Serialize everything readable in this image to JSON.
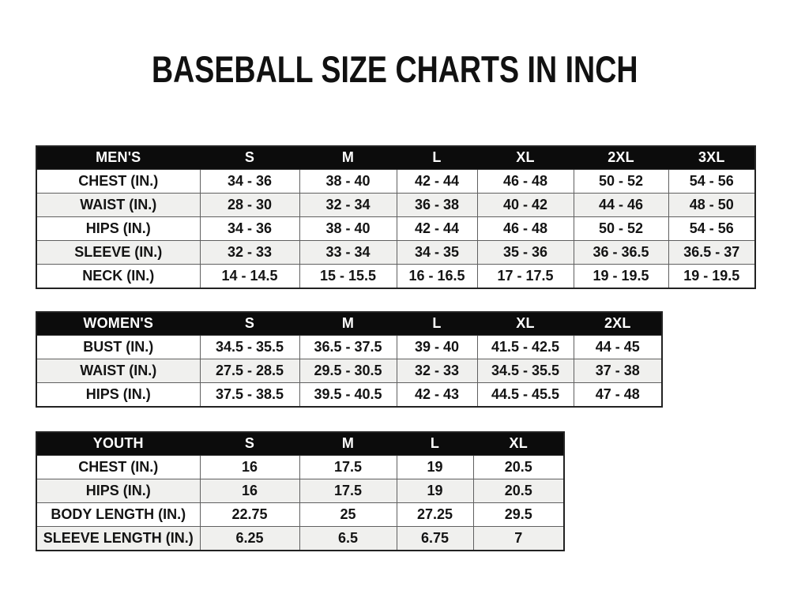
{
  "page": {
    "title": "BASEBALL SIZE CHARTS IN INCH",
    "unit": "inch"
  },
  "colors": {
    "page_bg": "#ffffff",
    "title_color": "#111111",
    "header_bg": "#0c0c0c",
    "header_text": "#ffffff",
    "row_bg": "#ffffff",
    "row_alt_bg": "#f0f0ee"
  },
  "chart_data": [
    {
      "type": "table",
      "title": "MEN'S",
      "columns": [
        "MEN'S",
        "S",
        "M",
        "L",
        "XL",
        "2XL",
        "3XL"
      ],
      "rows": [
        [
          "CHEST (IN.)",
          "34 - 36",
          "38 - 40",
          "42 - 44",
          "46 - 48",
          "50 - 52",
          "54 - 56"
        ],
        [
          "WAIST (IN.)",
          "28 - 30",
          "32 - 34",
          "36 - 38",
          "40 - 42",
          "44 - 46",
          "48 - 50"
        ],
        [
          "HIPS (IN.)",
          "34 - 36",
          "38 - 40",
          "42 - 44",
          "46 - 48",
          "50 - 52",
          "54 - 56"
        ],
        [
          "SLEEVE (IN.)",
          "32 - 33",
          "33 - 34",
          "34 - 35",
          "35 - 36",
          "36 - 36.5",
          "36.5 - 37"
        ],
        [
          "NECK (IN.)",
          "14 - 14.5",
          "15 - 15.5",
          "16 - 16.5",
          "17 - 17.5",
          "19 - 19.5",
          "19 - 19.5"
        ]
      ]
    },
    {
      "type": "table",
      "title": "WOMEN'S",
      "columns": [
        "WOMEN'S",
        "S",
        "M",
        "L",
        "XL",
        "2XL"
      ],
      "rows": [
        [
          "BUST (IN.)",
          "34.5 - 35.5",
          "36.5 - 37.5",
          "39 - 40",
          "41.5 - 42.5",
          "44 - 45"
        ],
        [
          "WAIST (IN.)",
          "27.5 - 28.5",
          "29.5 - 30.5",
          "32 - 33",
          "34.5 - 35.5",
          "37 - 38"
        ],
        [
          "HIPS (IN.)",
          "37.5 - 38.5",
          "39.5 - 40.5",
          "42 - 43",
          "44.5 - 45.5",
          "47 - 48"
        ]
      ]
    },
    {
      "type": "table",
      "title": "YOUTH",
      "columns": [
        "YOUTH",
        "S",
        "M",
        "L",
        "XL"
      ],
      "rows": [
        [
          "CHEST (IN.)",
          "16",
          "17.5",
          "19",
          "20.5"
        ],
        [
          "HIPS (IN.)",
          "16",
          "17.5",
          "19",
          "20.5"
        ],
        [
          "BODY LENGTH (IN.)",
          "22.75",
          "25",
          "27.25",
          "29.5"
        ],
        [
          "SLEEVE LENGTH (IN.)",
          "6.25",
          "6.5",
          "6.75",
          "7"
        ]
      ]
    }
  ]
}
